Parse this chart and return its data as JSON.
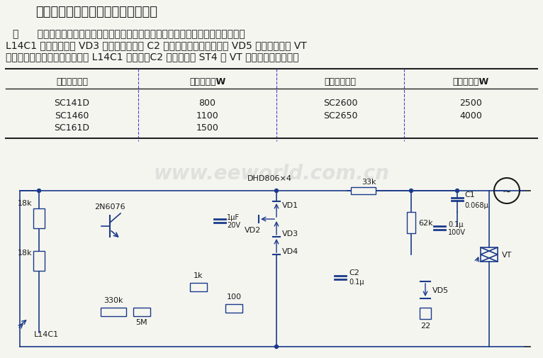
{
  "title": "采用双向晶闸管的夜间自动照明电路",
  "paragraph_line1": "图      中所示电路采用光敏三极管作为照度传感元件。当白天照度很大时，光敏三极管",
  "paragraph_line2": "L14C1 导通，二极管 VD3 也导通，使电容 C2 上压降为零，双向触发管 VD5 和双向晶闸管 VT",
  "paragraph_line3": "均不导通，灯不亮。反之，夜间 L14C1 不导通，C2 上有电压使 ST4 和 VT 导通，灯自动会亮。",
  "table_headers": [
    "晶闸管的规格",
    "灯的功率，W",
    "晶闸管的规格",
    "灯的功率，W"
  ],
  "table_rows": [
    [
      "SC141D",
      "800",
      "SC2600",
      "2500"
    ],
    [
      "SC1460",
      "1100",
      "SC2650",
      "4000"
    ],
    [
      "SC161D",
      "1500",
      "",
      ""
    ]
  ],
  "watermark": "www.eeworld.com.cn",
  "circuit_label": "DHD806×4",
  "bg_color": "#f5f5f0",
  "text_color": "#1a1a1a",
  "circuit_color": "#1a3a8a",
  "table_line_color": "#333333",
  "watermark_color": "#cccccc",
  "title_fontsize": 13,
  "body_fontsize": 10,
  "table_fontsize": 9,
  "circuit_fontsize": 8
}
